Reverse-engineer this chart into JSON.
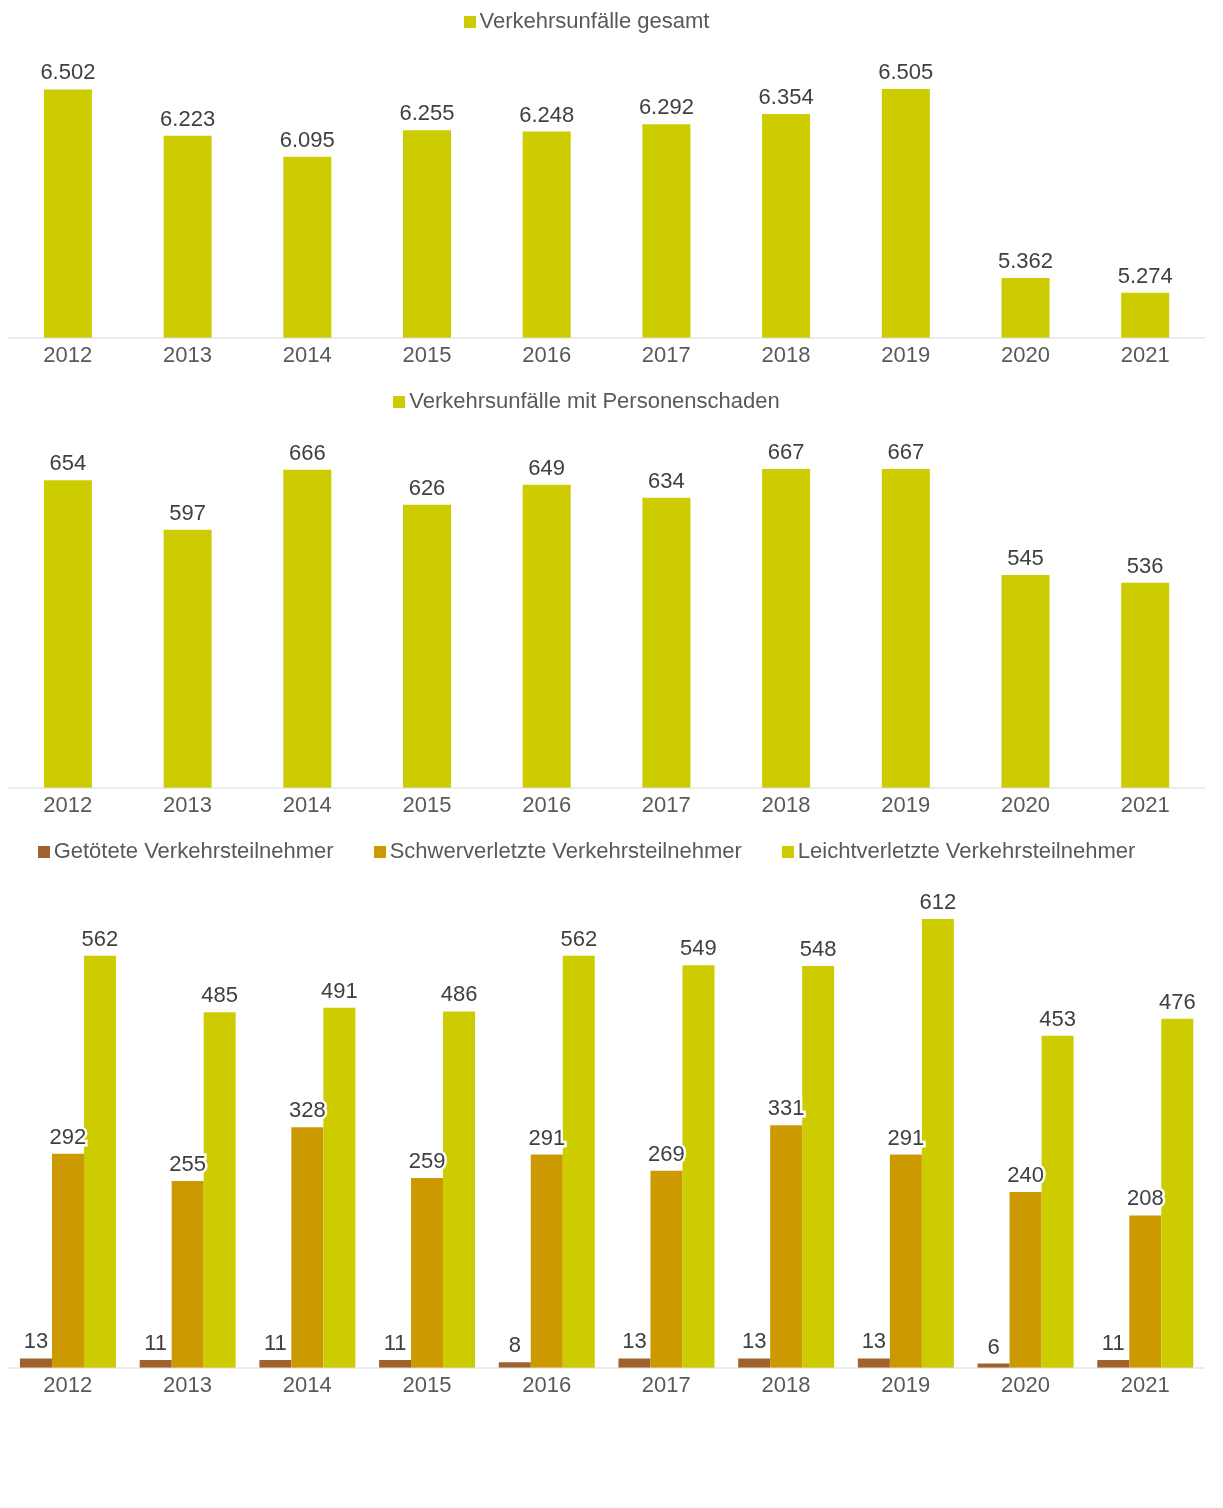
{
  "chart_data": [
    {
      "type": "bar",
      "categories": [
        "2012",
        "2013",
        "2014",
        "2015",
        "2016",
        "2017",
        "2018",
        "2019",
        "2020",
        "2021"
      ],
      "series": [
        {
          "name": "Verkehrsunfälle gesamt",
          "color": "#cccc00",
          "values": [
            6502,
            6223,
            6095,
            6255,
            6248,
            6292,
            6354,
            6505,
            5362,
            5274
          ],
          "value_labels": [
            "6.502",
            "6.223",
            "6.095",
            "6.255",
            "6.248",
            "6.292",
            "6.354",
            "6.505",
            "5.362",
            "5.274"
          ]
        }
      ],
      "ylim": [
        5000,
        6505
      ],
      "legend": "top",
      "tick_labels": "x"
    },
    {
      "type": "bar",
      "categories": [
        "2012",
        "2013",
        "2014",
        "2015",
        "2016",
        "2017",
        "2018",
        "2019",
        "2020",
        "2021"
      ],
      "series": [
        {
          "name": "Verkehrsunfälle mit Personenschaden",
          "color": "#cccc00",
          "values": [
            654,
            597,
            666,
            626,
            649,
            634,
            667,
            667,
            545,
            536
          ]
        }
      ],
      "ylim": [
        300,
        667
      ],
      "legend": "top",
      "tick_labels": "x",
      "data_labels": true
    },
    {
      "type": "bar",
      "categories": [
        "2012",
        "2013",
        "2014",
        "2015",
        "2016",
        "2017",
        "2018",
        "2019",
        "2020",
        "2021"
      ],
      "series": [
        {
          "name": "Getötete Verkehrsteilnehmer",
          "color": "#a0622d",
          "values": [
            13,
            11,
            11,
            11,
            8,
            13,
            13,
            13,
            6,
            11
          ]
        },
        {
          "name": "Schwerverletzte Verkehrsteilnehmer",
          "color": "#cc9900",
          "values": [
            292,
            255,
            328,
            259,
            291,
            269,
            331,
            291,
            240,
            208
          ]
        },
        {
          "name": "Leichtverletzte Verkehrsteilnehmer",
          "color": "#cccc00",
          "values": [
            562,
            485,
            491,
            486,
            562,
            549,
            548,
            612,
            453,
            476
          ]
        }
      ],
      "ylim": [
        0,
        612
      ],
      "legend": "top",
      "tick_labels": "x",
      "data_labels": true
    }
  ]
}
